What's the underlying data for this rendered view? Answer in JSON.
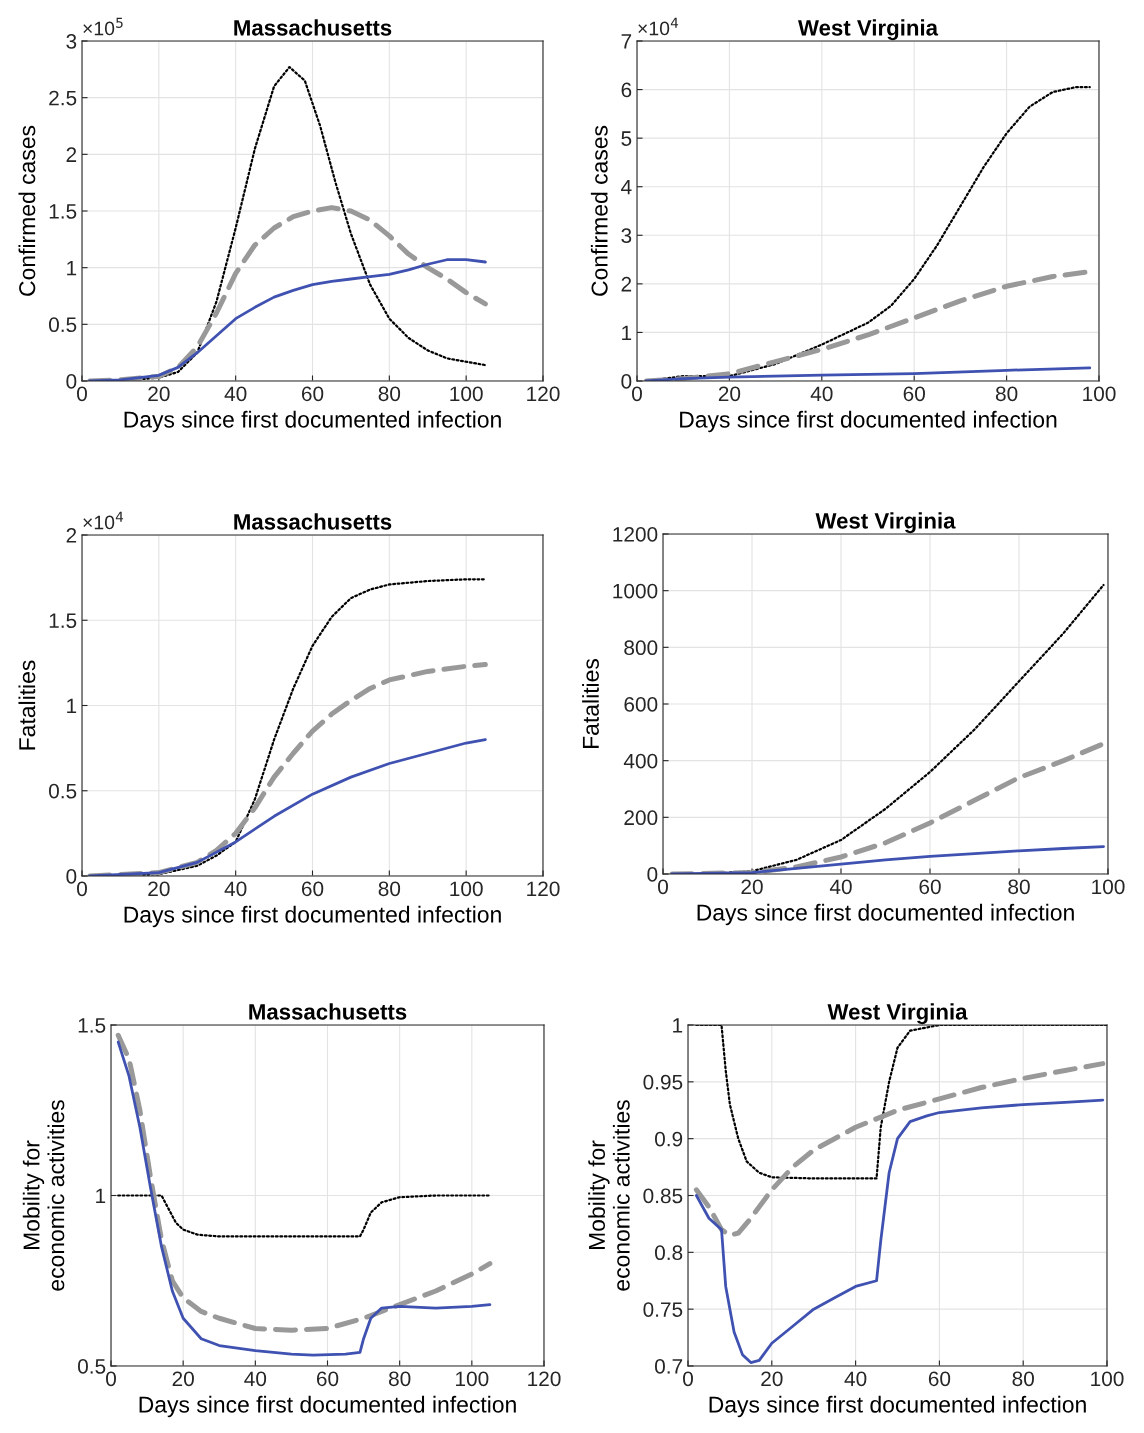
{
  "chart_data": [
    {
      "type": "line",
      "title": "Massachusetts",
      "xlabel": "Days since first documented infection",
      "ylabel": "Confirmed cases",
      "annotations": [
        "×10$^{5}$"
      ],
      "xlim": [
        0,
        120
      ],
      "xticks": [
        0,
        20,
        40,
        60,
        80,
        100,
        120
      ],
      "ylim": [
        0,
        3
      ],
      "yticks": [
        0,
        0.5,
        1,
        1.5,
        2,
        2.5,
        3
      ],
      "grid": true,
      "series": [
        {
          "color": "#000000",
          "line_style": "dotted",
          "x": [
            2,
            10,
            20,
            25,
            30,
            35,
            40,
            45,
            50,
            54,
            58,
            62,
            66,
            70,
            75,
            80,
            85,
            90,
            95,
            100,
            105
          ],
          "values": [
            0,
            0,
            0.03,
            0.08,
            0.25,
            0.7,
            1.35,
            2.05,
            2.6,
            2.77,
            2.65,
            2.25,
            1.75,
            1.3,
            0.85,
            0.55,
            0.38,
            0.27,
            0.2,
            0.17,
            0.14
          ]
        },
        {
          "color": "#999999",
          "line_style": "dashed",
          "x": [
            2,
            10,
            20,
            25,
            30,
            35,
            40,
            45,
            50,
            55,
            60,
            65,
            70,
            75,
            80,
            85,
            90,
            95,
            100,
            105
          ],
          "values": [
            0,
            0.01,
            0.04,
            0.12,
            0.3,
            0.6,
            0.95,
            1.2,
            1.35,
            1.45,
            1.5,
            1.53,
            1.5,
            1.42,
            1.28,
            1.12,
            1.0,
            0.9,
            0.78,
            0.68
          ]
        },
        {
          "color": "#3f51b1",
          "line_style": "solid",
          "x": [
            2,
            10,
            20,
            25,
            30,
            35,
            40,
            45,
            50,
            55,
            60,
            65,
            70,
            75,
            80,
            85,
            90,
            95,
            100,
            105
          ],
          "values": [
            0,
            0.01,
            0.05,
            0.12,
            0.25,
            0.4,
            0.55,
            0.65,
            0.74,
            0.8,
            0.85,
            0.88,
            0.9,
            0.92,
            0.94,
            0.98,
            1.03,
            1.07,
            1.07,
            1.05
          ]
        }
      ]
    },
    {
      "type": "line",
      "title": "West Virginia",
      "xlabel": "Days since first documented infection",
      "ylabel": "Confirmed cases",
      "annotations": [
        "×10$^{4}$"
      ],
      "xlim": [
        0,
        100
      ],
      "xticks": [
        0,
        20,
        40,
        60,
        80,
        100
      ],
      "ylim": [
        0,
        7
      ],
      "yticks": [
        0,
        1,
        2,
        3,
        4,
        5,
        6,
        7
      ],
      "grid": true,
      "series": [
        {
          "color": "#000000",
          "line_style": "dotted",
          "x": [
            2,
            10,
            20,
            30,
            40,
            50,
            55,
            60,
            65,
            70,
            75,
            80,
            85,
            90,
            95,
            98
          ],
          "values": [
            0,
            0.1,
            0.1,
            0.35,
            0.75,
            1.2,
            1.55,
            2.1,
            2.8,
            3.6,
            4.4,
            5.1,
            5.65,
            5.95,
            6.05,
            6.05
          ]
        },
        {
          "color": "#999999",
          "line_style": "dashed",
          "x": [
            2,
            10,
            20,
            30,
            40,
            50,
            60,
            70,
            80,
            90,
            98
          ],
          "values": [
            0,
            0.05,
            0.15,
            0.4,
            0.65,
            0.95,
            1.3,
            1.65,
            1.95,
            2.15,
            2.25
          ]
        },
        {
          "color": "#3f51b1",
          "line_style": "solid",
          "x": [
            2,
            10,
            20,
            40,
            60,
            80,
            98
          ],
          "values": [
            0,
            0.05,
            0.08,
            0.12,
            0.15,
            0.22,
            0.27
          ]
        }
      ]
    },
    {
      "type": "line",
      "title": "Massachusetts",
      "xlabel": "Days since first documented infection",
      "ylabel": "Fatalities",
      "annotations": [
        "×10$^{4}$"
      ],
      "xlim": [
        0,
        120
      ],
      "xticks": [
        0,
        20,
        40,
        60,
        80,
        100,
        120
      ],
      "ylim": [
        0,
        2
      ],
      "yticks": [
        0,
        0.5,
        1,
        1.5,
        2
      ],
      "grid": true,
      "series": [
        {
          "color": "#000000",
          "line_style": "dotted",
          "x": [
            2,
            20,
            30,
            35,
            40,
            45,
            50,
            55,
            60,
            65,
            70,
            75,
            80,
            90,
            100,
            105
          ],
          "values": [
            0,
            0.01,
            0.06,
            0.12,
            0.2,
            0.45,
            0.8,
            1.1,
            1.35,
            1.52,
            1.63,
            1.68,
            1.71,
            1.73,
            1.74,
            1.74
          ]
        },
        {
          "color": "#999999",
          "line_style": "dashed",
          "x": [
            2,
            20,
            30,
            35,
            40,
            45,
            50,
            55,
            60,
            65,
            70,
            75,
            80,
            90,
            100,
            105
          ],
          "values": [
            0,
            0.02,
            0.08,
            0.15,
            0.25,
            0.4,
            0.58,
            0.72,
            0.85,
            0.95,
            1.03,
            1.1,
            1.15,
            1.2,
            1.23,
            1.24
          ]
        },
        {
          "color": "#3f51b1",
          "line_style": "solid",
          "x": [
            2,
            20,
            30,
            40,
            50,
            60,
            70,
            80,
            90,
            100,
            105
          ],
          "values": [
            0,
            0.02,
            0.08,
            0.2,
            0.35,
            0.48,
            0.58,
            0.66,
            0.72,
            0.78,
            0.8
          ]
        }
      ]
    },
    {
      "type": "line",
      "title": "West Virginia",
      "xlabel": "Days since first documented infection",
      "ylabel": "Fatalities",
      "xlim": [
        0,
        100
      ],
      "xticks": [
        0,
        20,
        40,
        60,
        80,
        100
      ],
      "ylim": [
        0,
        1200
      ],
      "yticks": [
        0,
        200,
        400,
        600,
        800,
        1000,
        1200
      ],
      "grid": true,
      "series": [
        {
          "color": "#000000",
          "line_style": "dotted",
          "x": [
            2,
            10,
            20,
            30,
            40,
            50,
            60,
            70,
            80,
            90,
            99
          ],
          "values": [
            0,
            0,
            10,
            50,
            120,
            230,
            360,
            510,
            680,
            850,
            1020
          ]
        },
        {
          "color": "#999999",
          "line_style": "dashed",
          "x": [
            2,
            20,
            30,
            40,
            50,
            60,
            70,
            80,
            90,
            99
          ],
          "values": [
            0,
            5,
            25,
            60,
            110,
            180,
            260,
            340,
            400,
            460
          ]
        },
        {
          "color": "#3f51b1",
          "line_style": "solid",
          "x": [
            2,
            20,
            30,
            40,
            50,
            60,
            70,
            80,
            90,
            99
          ],
          "values": [
            0,
            5,
            20,
            35,
            50,
            62,
            72,
            82,
            90,
            97
          ]
        }
      ]
    },
    {
      "type": "line",
      "title": "Massachusetts",
      "xlabel": "Days since first documented infection",
      "ylabel": "Mobility for\neconomic activities",
      "xlim": [
        0,
        120
      ],
      "xticks": [
        0,
        20,
        40,
        60,
        80,
        100,
        120
      ],
      "ylim": [
        0.5,
        1.5
      ],
      "yticks": [
        0.5,
        1,
        1.5
      ],
      "grid": true,
      "series": [
        {
          "color": "#000000",
          "line_style": "dotted",
          "x": [
            2,
            14,
            16,
            18,
            20,
            24,
            30,
            69,
            70,
            72,
            75,
            80,
            90,
            105
          ],
          "values": [
            1,
            1,
            0.96,
            0.92,
            0.9,
            0.885,
            0.88,
            0.88,
            0.9,
            0.95,
            0.98,
            0.995,
            1,
            1
          ]
        },
        {
          "color": "#999999",
          "line_style": "dashed",
          "x": [
            2,
            5,
            8,
            11,
            14,
            17,
            20,
            25,
            30,
            40,
            50,
            60,
            70,
            80,
            90,
            100,
            105
          ],
          "values": [
            1.47,
            1.4,
            1.25,
            1.05,
            0.87,
            0.75,
            0.7,
            0.66,
            0.64,
            0.61,
            0.605,
            0.61,
            0.64,
            0.68,
            0.72,
            0.77,
            0.8
          ]
        },
        {
          "color": "#3f51b1",
          "line_style": "solid",
          "x": [
            2,
            5,
            8,
            11,
            14,
            17,
            20,
            25,
            30,
            40,
            50,
            56,
            65,
            69,
            70,
            72,
            75,
            80,
            90,
            100,
            105
          ],
          "values": [
            1.45,
            1.35,
            1.2,
            1.02,
            0.85,
            0.72,
            0.64,
            0.58,
            0.56,
            0.545,
            0.535,
            0.532,
            0.535,
            0.54,
            0.58,
            0.64,
            0.67,
            0.675,
            0.67,
            0.675,
            0.68
          ]
        }
      ]
    },
    {
      "type": "line",
      "title": "West Virginia",
      "xlabel": "Days since first documented infection",
      "ylabel": "Mobility for\neconomic activities",
      "xlim": [
        0,
        100
      ],
      "xticks": [
        0,
        20,
        40,
        60,
        80,
        100
      ],
      "ylim": [
        0.7,
        1
      ],
      "yticks": [
        0.7,
        0.75,
        0.8,
        0.85,
        0.9,
        0.95,
        1
      ],
      "grid": true,
      "series": [
        {
          "color": "#000000",
          "line_style": "dotted",
          "x": [
            2,
            8,
            9,
            10,
            12,
            14,
            17,
            20,
            30,
            45,
            46,
            48,
            50,
            53,
            60,
            100
          ],
          "values": [
            1,
            1,
            0.96,
            0.93,
            0.9,
            0.88,
            0.87,
            0.866,
            0.865,
            0.865,
            0.91,
            0.95,
            0.98,
            0.995,
            1,
            1
          ]
        },
        {
          "color": "#999999",
          "line_style": "dashed",
          "x": [
            2,
            5,
            8,
            10,
            12,
            15,
            20,
            25,
            30,
            40,
            50,
            60,
            70,
            80,
            90,
            99
          ],
          "values": [
            0.855,
            0.84,
            0.82,
            0.815,
            0.817,
            0.83,
            0.855,
            0.875,
            0.89,
            0.91,
            0.925,
            0.935,
            0.945,
            0.953,
            0.96,
            0.966
          ]
        },
        {
          "color": "#3f51b1",
          "line_style": "solid",
          "x": [
            2,
            5,
            8,
            9,
            11,
            13,
            15,
            17,
            20,
            25,
            30,
            35,
            40,
            45,
            46,
            48,
            50,
            53,
            57,
            60,
            70,
            80,
            90,
            99
          ],
          "values": [
            0.85,
            0.83,
            0.82,
            0.77,
            0.73,
            0.71,
            0.703,
            0.705,
            0.72,
            0.735,
            0.75,
            0.76,
            0.77,
            0.775,
            0.81,
            0.87,
            0.9,
            0.915,
            0.92,
            0.923,
            0.927,
            0.93,
            0.932,
            0.934
          ]
        }
      ]
    }
  ]
}
